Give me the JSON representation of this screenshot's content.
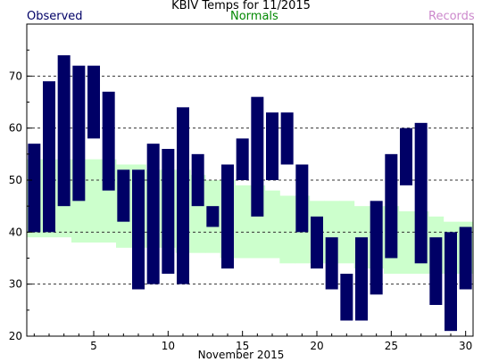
{
  "chart_data": {
    "type": "bar",
    "title": "KBIV Temps for 11/2015",
    "xlabel": "November 2015",
    "ylabel": "",
    "legend": [
      {
        "name": "Observed",
        "color": "#000066"
      },
      {
        "name": "Normals",
        "color": "#008800"
      },
      {
        "name": "Records",
        "color": "#cc88cc"
      }
    ],
    "colors": {
      "observed_bar": "#000066",
      "normals_band": "#ccffcc",
      "grid": "#333333",
      "axis": "#000000"
    },
    "xlim": [
      1,
      30
    ],
    "ylim": [
      20,
      80
    ],
    "x_ticks": [
      5,
      10,
      15,
      20,
      25,
      30
    ],
    "y_ticks": [
      20,
      30,
      40,
      50,
      60,
      70
    ],
    "grid_y": [
      30,
      40,
      50,
      60,
      70
    ],
    "days": [
      1,
      2,
      3,
      4,
      5,
      6,
      7,
      8,
      9,
      10,
      11,
      12,
      13,
      14,
      15,
      16,
      17,
      18,
      19,
      20,
      21,
      22,
      23,
      24,
      25,
      26,
      27,
      28,
      29,
      30
    ],
    "series": [
      {
        "name": "Observed",
        "high": [
          57,
          69,
          74,
          72,
          72,
          67,
          52,
          52,
          57,
          56,
          64,
          55,
          45,
          53,
          58,
          66,
          63,
          63,
          53,
          43,
          39,
          32,
          39,
          46,
          55,
          60,
          61,
          39,
          40,
          41
        ],
        "low": [
          40,
          40,
          45,
          46,
          58,
          48,
          42,
          29,
          30,
          32,
          30,
          45,
          41,
          33,
          50,
          43,
          50,
          53,
          40,
          33,
          29,
          23,
          23,
          28,
          35,
          49,
          34,
          26,
          21,
          29
        ]
      },
      {
        "name": "Normals",
        "high": [
          54,
          54,
          54,
          54,
          54,
          54,
          53,
          53,
          52,
          52,
          52,
          51,
          50,
          50,
          49,
          49,
          48,
          47,
          47,
          46,
          46,
          46,
          45,
          45,
          45,
          44,
          44,
          43,
          42,
          42
        ],
        "low": [
          39,
          39,
          39,
          38,
          38,
          38,
          37,
          37,
          37,
          37,
          36,
          36,
          36,
          35,
          35,
          35,
          35,
          34,
          34,
          34,
          34,
          34,
          33,
          33,
          32,
          32,
          32,
          32,
          32,
          32
        ]
      }
    ]
  }
}
